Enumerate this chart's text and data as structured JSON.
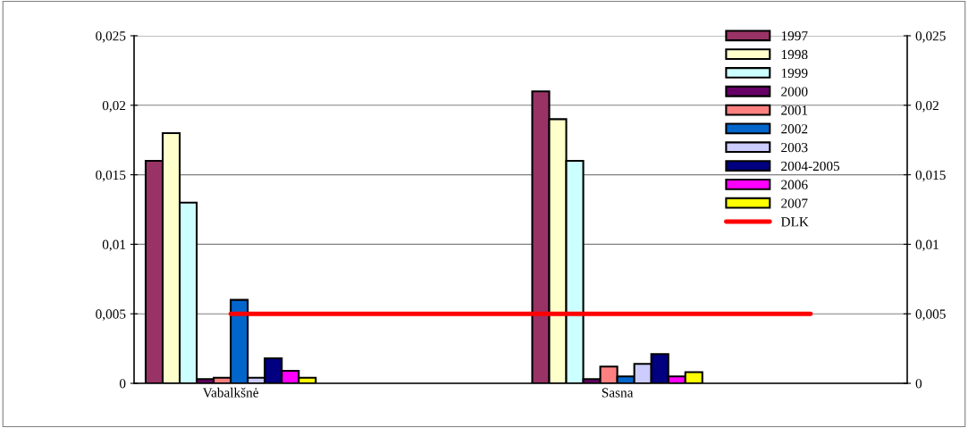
{
  "chart_data": {
    "type": "bar",
    "categories": [
      "Vabalkšnė",
      null,
      "Sasna",
      null
    ],
    "series": [
      {
        "name": "1997",
        "color": "#993366",
        "values": [
          0.016,
          null,
          0.021,
          null
        ]
      },
      {
        "name": "1998",
        "color": "#ffffcc",
        "values": [
          0.018,
          null,
          0.019,
          null
        ]
      },
      {
        "name": "1999",
        "color": "#ccffff",
        "values": [
          0.013,
          null,
          0.016,
          null
        ]
      },
      {
        "name": "2000",
        "color": "#660066",
        "values": [
          0.0003,
          null,
          0.0003,
          null
        ]
      },
      {
        "name": "2001",
        "color": "#ff8080",
        "values": [
          0.0004,
          null,
          0.0012,
          null
        ]
      },
      {
        "name": "2002",
        "color": "#0066cc",
        "values": [
          0.006,
          null,
          0.0005,
          null
        ]
      },
      {
        "name": "2003",
        "color": "#ccccff",
        "values": [
          0.0004,
          null,
          0.0014,
          null
        ]
      },
      {
        "name": "2004-2005",
        "color": "#000080",
        "values": [
          0.0018,
          null,
          0.0021,
          null
        ]
      },
      {
        "name": "2006",
        "color": "#ff00ff",
        "values": [
          0.0009,
          null,
          0.0005,
          null
        ]
      },
      {
        "name": "2007",
        "color": "#ffff00",
        "values": [
          0.0004,
          null,
          0.0008,
          null
        ]
      },
      {
        "name": "DLK",
        "type": "line",
        "color": "#ff0000",
        "values": [
          0.005,
          0.005,
          0.005,
          0.005
        ]
      }
    ],
    "ylim": [
      0,
      0.025
    ],
    "yticks": [
      {
        "value": 0,
        "label": "0"
      },
      {
        "value": 0.005,
        "label": "0,005"
      },
      {
        "value": 0.01,
        "label": "0,01"
      },
      {
        "value": 0.015,
        "label": "0,015"
      },
      {
        "value": 0.02,
        "label": "0,02"
      },
      {
        "value": 0.025,
        "label": "0,025"
      }
    ],
    "y2lim": [
      0,
      0.025
    ],
    "y2ticks": [
      {
        "value": 0,
        "label": "0"
      },
      {
        "value": 0.005,
        "label": "0,005"
      },
      {
        "value": 0.01,
        "label": "0,01"
      },
      {
        "value": 0.015,
        "label": "0,015"
      },
      {
        "value": 0.02,
        "label": "0,02"
      },
      {
        "value": 0.025,
        "label": "0,025"
      }
    ],
    "grid": "y",
    "legend": "top right"
  }
}
